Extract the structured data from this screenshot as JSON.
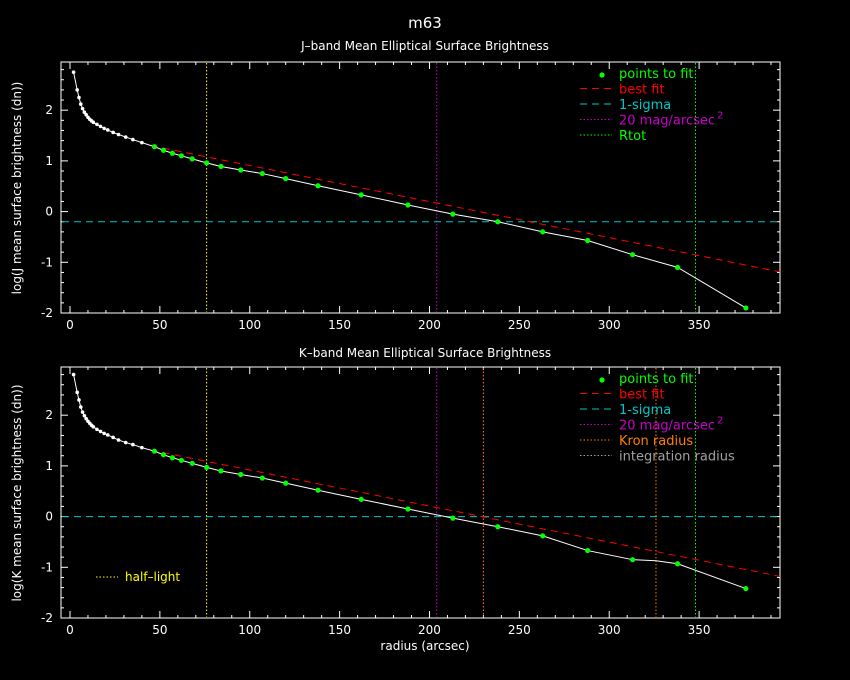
{
  "figure_title": "m63",
  "xlabel": "radius (arcsec)",
  "colors": {
    "axes": "#ffffff",
    "points": "#00ff00",
    "best_fit": "#ff0000",
    "sigma": "#00c8c8",
    "mag20": "#c800c8",
    "rtot": "#00ff00",
    "kron": "#ff8000",
    "integration": "#a0a0a0",
    "half_light": "#ffff00",
    "profile": "#ffffff"
  },
  "chart_data": [
    {
      "type": "line",
      "title": "J–band Mean Elliptical Surface Brightness",
      "ylabel": "log(J mean surface brightness (dn))",
      "xlabel": "",
      "xlim": [
        -5,
        395
      ],
      "ylim": [
        -2,
        2.95
      ],
      "xticks": [
        0,
        50,
        100,
        150,
        200,
        250,
        300,
        350
      ],
      "yticks": [
        -2,
        -1,
        0,
        1,
        2
      ],
      "legend": [
        "points to fit",
        "best fit",
        "1-sigma",
        "20 mag/arcsec",
        "Rtot"
      ],
      "legend_superscript": "2",
      "legend_position": "top-right",
      "profile": {
        "x": [
          2,
          4,
          5,
          6,
          7,
          8,
          9,
          10,
          11,
          12,
          13,
          15,
          17,
          19,
          21,
          24,
          27,
          31,
          35,
          40,
          47,
          52,
          57,
          62,
          68,
          76,
          84,
          95,
          107,
          120,
          138,
          162,
          188,
          213,
          238,
          263,
          288,
          313,
          338,
          376
        ],
        "y": [
          2.75,
          2.4,
          2.25,
          2.12,
          2.03,
          1.96,
          1.91,
          1.86,
          1.82,
          1.79,
          1.76,
          1.72,
          1.68,
          1.64,
          1.61,
          1.56,
          1.52,
          1.47,
          1.42,
          1.36,
          1.28,
          1.21,
          1.15,
          1.1,
          1.04,
          0.96,
          0.89,
          0.82,
          0.75,
          0.65,
          0.51,
          0.33,
          0.13,
          -0.05,
          -0.2,
          -0.4,
          -0.57,
          -0.85,
          -1.1,
          -1.9
        ]
      },
      "fit_points": {
        "x": [
          47,
          52,
          57,
          62,
          68,
          76,
          84,
          95,
          107,
          120,
          138,
          162,
          188,
          213,
          238,
          263,
          288,
          313,
          338,
          376
        ],
        "y": [
          1.28,
          1.21,
          1.15,
          1.1,
          1.04,
          0.96,
          0.89,
          0.82,
          0.75,
          0.65,
          0.51,
          0.33,
          0.13,
          -0.05,
          -0.2,
          -0.4,
          -0.57,
          -0.85,
          -1.1,
          -1.9
        ]
      },
      "best_fit": {
        "x": [
          45,
          395
        ],
        "y": [
          1.3,
          -1.19
        ]
      },
      "sigma_level": -0.2,
      "vlines": [
        {
          "x": 76,
          "color": "#ffff00"
        },
        {
          "x": 204,
          "color": "#c800c8"
        },
        {
          "x": 348,
          "color": "#00ff00"
        }
      ],
      "annotation": ""
    },
    {
      "type": "line",
      "title": "K–band Mean Elliptical Surface Brightness",
      "ylabel": "log(K mean surface brightness (dn))",
      "xlabel": "radius (arcsec)",
      "xlim": [
        -5,
        395
      ],
      "ylim": [
        -2,
        2.95
      ],
      "xticks": [
        0,
        50,
        100,
        150,
        200,
        250,
        300,
        350
      ],
      "yticks": [
        -2,
        -1,
        0,
        1,
        2
      ],
      "legend": [
        "points to fit",
        "best fit",
        "1-sigma",
        "20 mag/arcsec",
        "Kron radius",
        "integration radius"
      ],
      "legend_superscript": "2",
      "legend_position": "top-right",
      "profile": {
        "x": [
          2,
          4,
          5,
          6,
          7,
          8,
          9,
          10,
          11,
          12,
          13,
          15,
          17,
          19,
          21,
          24,
          27,
          31,
          35,
          40,
          47,
          52,
          57,
          62,
          68,
          76,
          84,
          95,
          107,
          120,
          138,
          162,
          188,
          213,
          238,
          263,
          288,
          313,
          326,
          338,
          376
        ],
        "y": [
          2.8,
          2.45,
          2.3,
          2.16,
          2.06,
          1.99,
          1.93,
          1.88,
          1.84,
          1.8,
          1.77,
          1.72,
          1.68,
          1.64,
          1.61,
          1.56,
          1.51,
          1.46,
          1.42,
          1.36,
          1.29,
          1.22,
          1.16,
          1.11,
          1.05,
          0.97,
          0.9,
          0.83,
          0.76,
          0.66,
          0.52,
          0.34,
          0.15,
          -0.03,
          -0.2,
          -0.38,
          -0.67,
          -0.85,
          -0.87,
          -0.93,
          -1.42
        ]
      },
      "fit_points": {
        "x": [
          47,
          52,
          57,
          62,
          68,
          76,
          84,
          95,
          107,
          120,
          138,
          162,
          188,
          213,
          238,
          263,
          288,
          313,
          338,
          376
        ],
        "y": [
          1.29,
          1.22,
          1.16,
          1.11,
          1.05,
          0.97,
          0.9,
          0.83,
          0.76,
          0.66,
          0.52,
          0.34,
          0.15,
          -0.03,
          -0.2,
          -0.38,
          -0.67,
          -0.85,
          -0.93,
          -1.42
        ]
      },
      "best_fit": {
        "x": [
          45,
          395
        ],
        "y": [
          1.31,
          -1.18
        ]
      },
      "sigma_level": 0,
      "vlines": [
        {
          "x": 76,
          "color": "#ffff00"
        },
        {
          "x": 204,
          "color": "#c800c8"
        },
        {
          "x": 230,
          "color": "#ff8000"
        },
        {
          "x": 326,
          "color": "#ff8000"
        },
        {
          "x": 348,
          "color": "#00ff00"
        }
      ],
      "annotation": "half–light"
    }
  ]
}
